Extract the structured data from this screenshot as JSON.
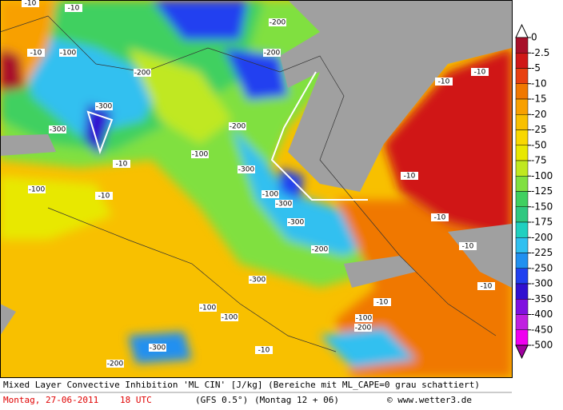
{
  "legend": {
    "ticks": [
      0,
      -2.5,
      -5,
      -10,
      -15,
      -20,
      -25,
      -50,
      -75,
      -100,
      -125,
      -150,
      -175,
      -200,
      -225,
      -250,
      -300,
      -350,
      -400,
      -450,
      -500
    ],
    "colors": [
      "#ffffff",
      "#a8102a",
      "#d01818",
      "#e84010",
      "#f07800",
      "#f8a000",
      "#f8c000",
      "#f8d800",
      "#e8e800",
      "#c0e820",
      "#80e040",
      "#40d060",
      "#30c880",
      "#20d0c0",
      "#30c0f0",
      "#2090f0",
      "#2040f0",
      "#3010d0",
      "#8010e0",
      "#c020e0",
      "#f000f0",
      "#a000a0"
    ]
  },
  "contour_labels": [
    "-10",
    "-10",
    "-10",
    "-10",
    "-10",
    "-10",
    "-10",
    "-10",
    "-10",
    "-10",
    "-10",
    "-10",
    "-10",
    "-100",
    "-100",
    "-100",
    "-100",
    "-100",
    "-100",
    "-100",
    "-200",
    "-200",
    "-200",
    "-200",
    "-200",
    "-200",
    "-200",
    "-300",
    "-300",
    "-300",
    "-300",
    "-300",
    "-300",
    "-300"
  ],
  "footer": {
    "description": "Mixed Layer Convective Inhibition 'ML CIN' [J/kg] (Bereiche mit ML_CAPE=0 grau schattiert)",
    "date": "Montag, 27-06-2011",
    "time": "18 UTC",
    "model": "(GFS 0.5°)",
    "run": "(Montag 12 + 06)",
    "credit": "© www.wetter3.de"
  }
}
